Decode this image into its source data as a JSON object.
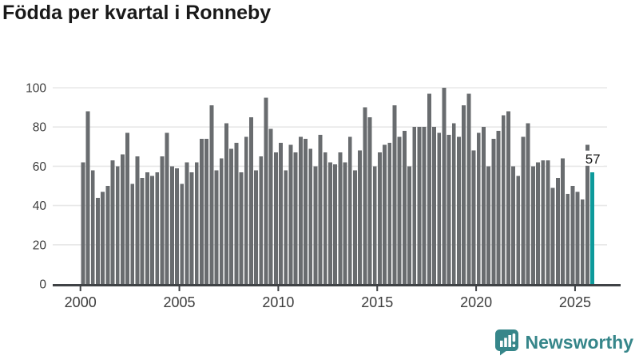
{
  "title": "Födda per kvartal i Ronneby",
  "brand": {
    "name": "Newsworthy",
    "icon": "newsworthy-bubble-chart-icon",
    "color": "#36868a"
  },
  "annotation": {
    "last_value_label": "57"
  },
  "colors": {
    "bar": "#696c6f",
    "highlight": "#0d9a9b",
    "gridline": "#e8e8e8",
    "axis": "#3f4245",
    "tick_text": "#3d3d3d",
    "label_text": "#1a1a1a",
    "title_text": "#191919"
  },
  "chart_data": {
    "type": "bar",
    "title": "Födda per kvartal i Ronneby",
    "x_unit": "quarter",
    "start_year": 2000,
    "end_year": 2025,
    "x_tick_labels": [
      "2000",
      "2005",
      "2010",
      "2015",
      "2020",
      "2025"
    ],
    "y_tick_labels": [
      "0",
      "20",
      "40",
      "60",
      "80",
      "100"
    ],
    "y_ticks": [
      0,
      20,
      40,
      60,
      80,
      100
    ],
    "ylim": [
      0,
      100
    ],
    "grid": "horizontal",
    "legend": "none",
    "highlight_last": true,
    "last_value": 57,
    "values": [
      62,
      88,
      58,
      44,
      47,
      50,
      63,
      60,
      66,
      77,
      51,
      65,
      54,
      57,
      55,
      57,
      65,
      77,
      60,
      59,
      51,
      62,
      57,
      62,
      74,
      74,
      91,
      58,
      64,
      82,
      69,
      72,
      57,
      75,
      85,
      58,
      65,
      95,
      79,
      67,
      72,
      58,
      71,
      67,
      75,
      74,
      69,
      60,
      76,
      67,
      62,
      61,
      67,
      62,
      75,
      58,
      68,
      90,
      85,
      60,
      67,
      71,
      72,
      91,
      75,
      78,
      60,
      80,
      80,
      80,
      97,
      80,
      77,
      100,
      76,
      82,
      75,
      91,
      97,
      68,
      77,
      80,
      60,
      74,
      78,
      86,
      88,
      60,
      55,
      75,
      82,
      60,
      62,
      63,
      63,
      49,
      54,
      64,
      46,
      50,
      47,
      43,
      71,
      57
    ]
  }
}
